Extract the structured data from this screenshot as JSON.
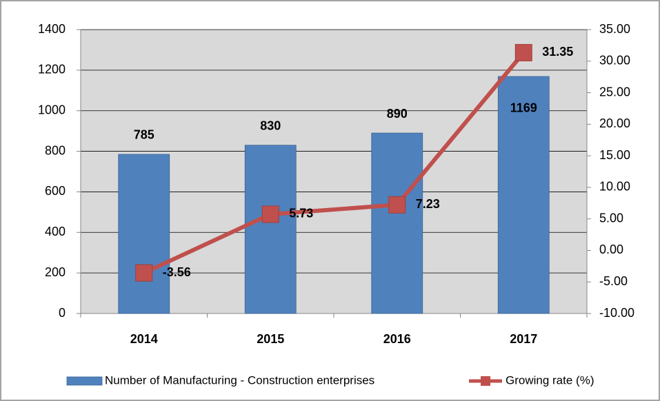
{
  "chart_data": {
    "type": "bar",
    "categories": [
      "2014",
      "2015",
      "2016",
      "2017"
    ],
    "series": [
      {
        "name": "Number of Manufacturing - Construction enterprises",
        "type": "bar",
        "color": "#4f81bd",
        "values": [
          785,
          830,
          890,
          1169
        ]
      },
      {
        "name": "Growing rate (%)",
        "type": "line",
        "axis": "y2",
        "color": "#c0504d",
        "values": [
          -3.56,
          5.73,
          7.23,
          31.35
        ]
      }
    ],
    "ylim": [
      0,
      1400
    ],
    "yticks": [
      0,
      200,
      400,
      600,
      800,
      1000,
      1200,
      1400
    ],
    "y2lim": [
      -10,
      35
    ],
    "y2ticks": [
      {
        "value": -10,
        "label": "-10.00"
      },
      {
        "value": -5,
        "label": "-5.00"
      },
      {
        "value": 0,
        "label": "0.00"
      },
      {
        "value": 5,
        "label": "5.00"
      },
      {
        "value": 10,
        "label": "10.00"
      },
      {
        "value": 15,
        "label": "15.00"
      },
      {
        "value": 20,
        "label": "20.00"
      },
      {
        "value": 25,
        "label": "25.00"
      },
      {
        "value": 30,
        "label": "30.00"
      },
      {
        "value": 35,
        "label": "35.00"
      }
    ],
    "grid": true,
    "legend": "bottom"
  }
}
